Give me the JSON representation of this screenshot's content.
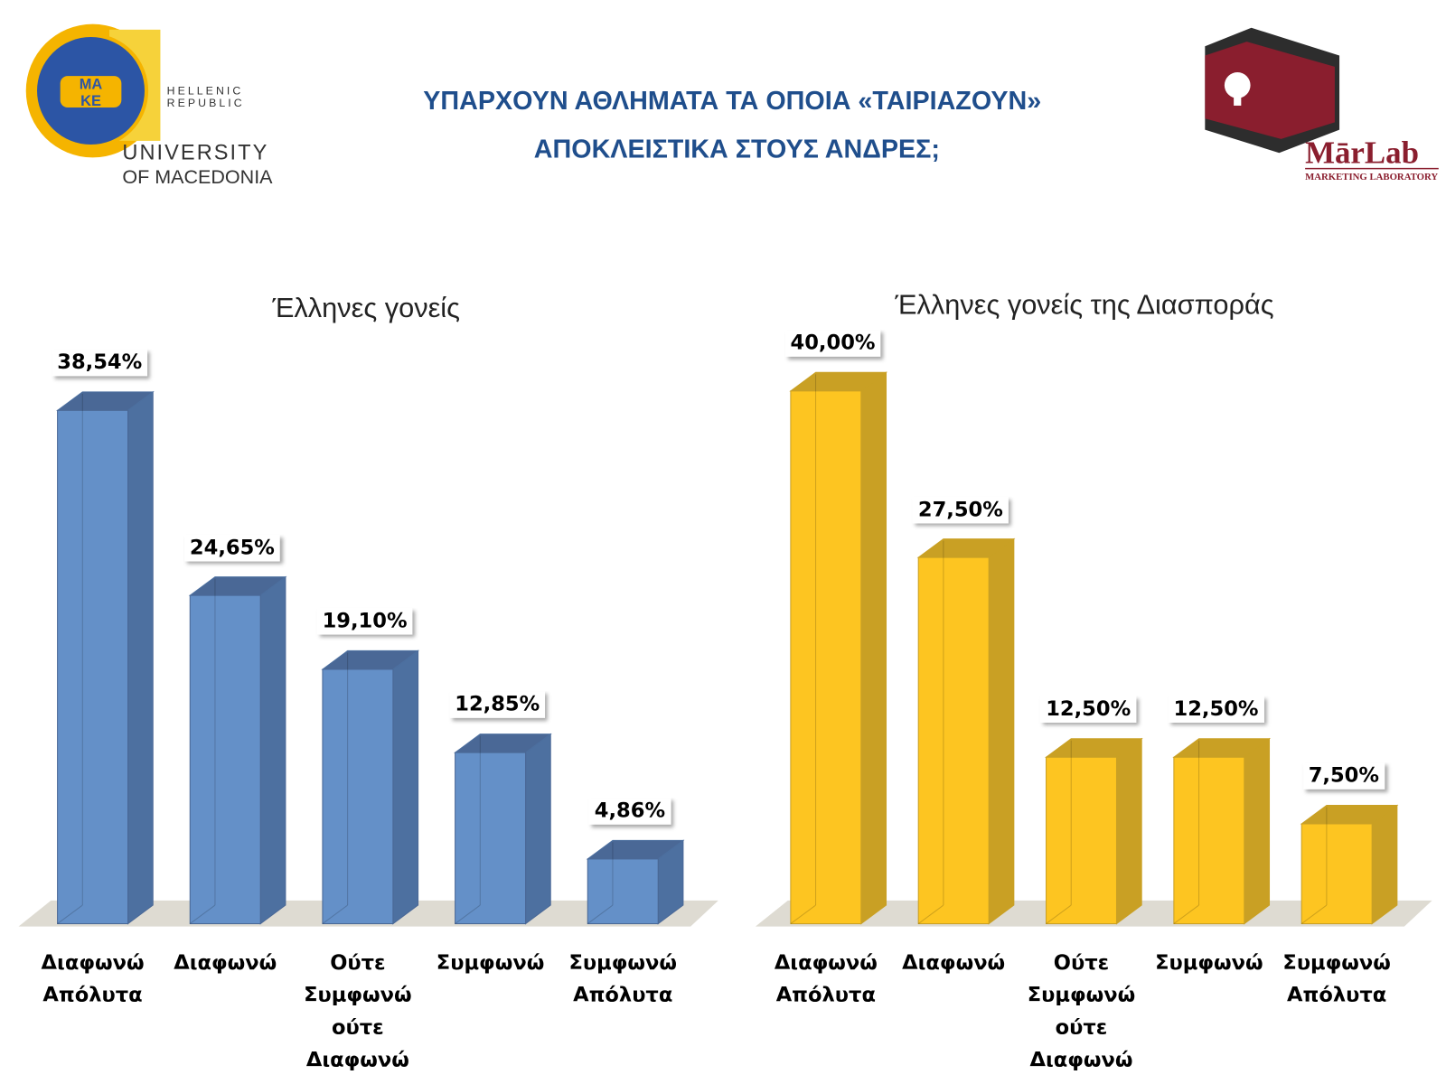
{
  "header": {
    "title_lines": [
      "ΥΠΑΡΧΟΥΝ ΑΘΛΗΜΑΤΑ ΤΑ ΟΠΟΙΑ «ΤΑΙΡΙΑΖΟΥΝ»",
      "ΑΠΟΚΛΕΙΣΤΙΚΑ ΣΤΟΥΣ ΑΝΔΡΕΣ;"
    ],
    "left_logo": {
      "republic": [
        "HELLENIC",
        "REPUBLIC"
      ],
      "university": [
        "UNIVERSITY",
        "OF MACEDONIA"
      ],
      "seal": [
        "ΜΑ",
        "ΚΕ"
      ]
    },
    "right_logo": {
      "name": "MārLab",
      "subtitle": "MARKETING LABORATORY"
    }
  },
  "chart_data": [
    {
      "type": "bar3d",
      "title": "Έλληνες γονείς",
      "categories": [
        "Διαφωνώ Απόλυτα",
        "Διαφωνώ",
        "Ούτε Συμφωνώ ούτε Διαφωνώ",
        "Συμφωνώ",
        "Συμφωνώ Απόλυτα"
      ],
      "values": [
        38.54,
        24.65,
        19.1,
        12.85,
        4.86
      ],
      "value_labels": [
        "38,54%",
        "24,65%",
        "19,10%",
        "12,85%",
        "4,86%"
      ],
      "ylim": [
        0,
        40
      ],
      "color": "#6490c8",
      "side_color": "#4d70a0",
      "top_color": "#4a6896"
    },
    {
      "type": "bar3d",
      "title": "Έλληνες γονείς της Διασποράς",
      "categories": [
        "Διαφωνώ Απόλυτα",
        "Διαφωνώ",
        "Ούτε Συμφωνώ ούτε Διαφωνώ",
        "Συμφωνώ",
        "Συμφωνώ Απόλυτα"
      ],
      "values": [
        40.0,
        27.5,
        12.5,
        12.5,
        7.5
      ],
      "value_labels": [
        "40,00%",
        "27,50%",
        "12,50%",
        "12,50%",
        "7,50%"
      ],
      "ylim": [
        0,
        40
      ],
      "color": "#fdc521",
      "side_color": "#c9a024",
      "top_color": "#c9a024"
    }
  ]
}
